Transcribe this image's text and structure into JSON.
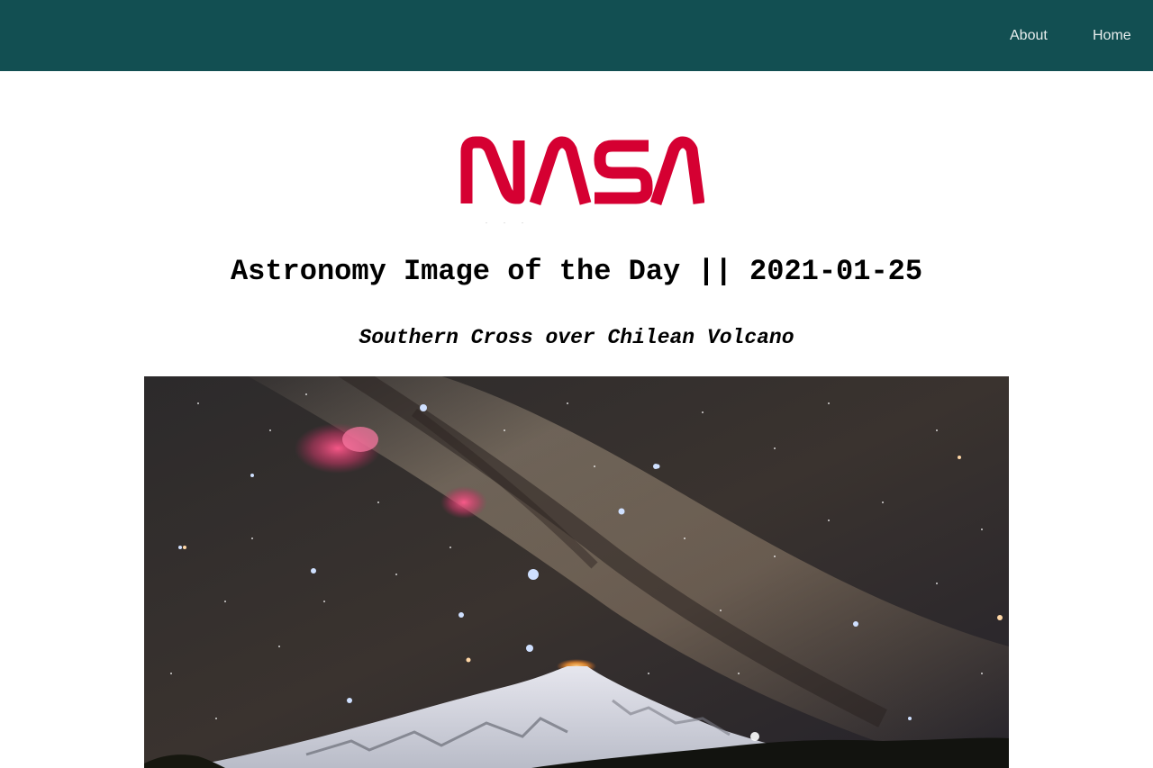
{
  "nav": {
    "about_label": "About",
    "home_label": "Home",
    "background_color": "#124f52"
  },
  "logo": {
    "text": "NASA",
    "color": "#d50032"
  },
  "page": {
    "title": "Astronomy Image of the Day || 2021-01-25",
    "image_title": "Southern Cross over Chilean Volcano"
  },
  "image": {
    "subject": "milky-way-over-snowy-volcano-photo"
  }
}
